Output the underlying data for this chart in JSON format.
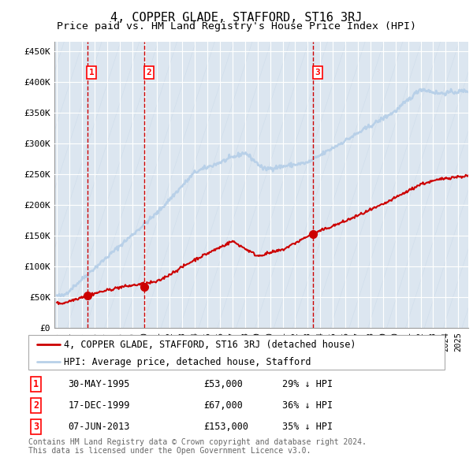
{
  "title": "4, COPPER GLADE, STAFFORD, ST16 3RJ",
  "subtitle": "Price paid vs. HM Land Registry's House Price Index (HPI)",
  "ylabel_ticks": [
    "£0",
    "£50K",
    "£100K",
    "£150K",
    "£200K",
    "£250K",
    "£300K",
    "£350K",
    "£400K",
    "£450K"
  ],
  "ytick_values": [
    0,
    50000,
    100000,
    150000,
    200000,
    250000,
    300000,
    350000,
    400000,
    450000
  ],
  "ylim": [
    0,
    465000
  ],
  "xlim_start": 1992.8,
  "xlim_end": 2025.8,
  "sale_dates": [
    1995.41,
    1999.96,
    2013.43
  ],
  "sale_prices": [
    53000,
    67000,
    153000
  ],
  "sale_labels": [
    "1",
    "2",
    "3"
  ],
  "hpi_line_color": "#b8d0e8",
  "sale_line_color": "#cc0000",
  "sale_dot_color": "#cc0000",
  "dashed_line_color": "#cc0000",
  "legend_entries": [
    "4, COPPER GLADE, STAFFORD, ST16 3RJ (detached house)",
    "HPI: Average price, detached house, Stafford"
  ],
  "table_data": [
    [
      "1",
      "30-MAY-1995",
      "£53,000",
      "29% ↓ HPI"
    ],
    [
      "2",
      "17-DEC-1999",
      "£67,000",
      "36% ↓ HPI"
    ],
    [
      "3",
      "07-JUN-2013",
      "£153,000",
      "35% ↓ HPI"
    ]
  ],
  "footnote": "Contains HM Land Registry data © Crown copyright and database right 2024.\nThis data is licensed under the Open Government Licence v3.0.",
  "title_fontsize": 11,
  "subtitle_fontsize": 9.5,
  "tick_fontsize": 8,
  "legend_fontsize": 8.5,
  "table_fontsize": 8.5,
  "footnote_fontsize": 7
}
